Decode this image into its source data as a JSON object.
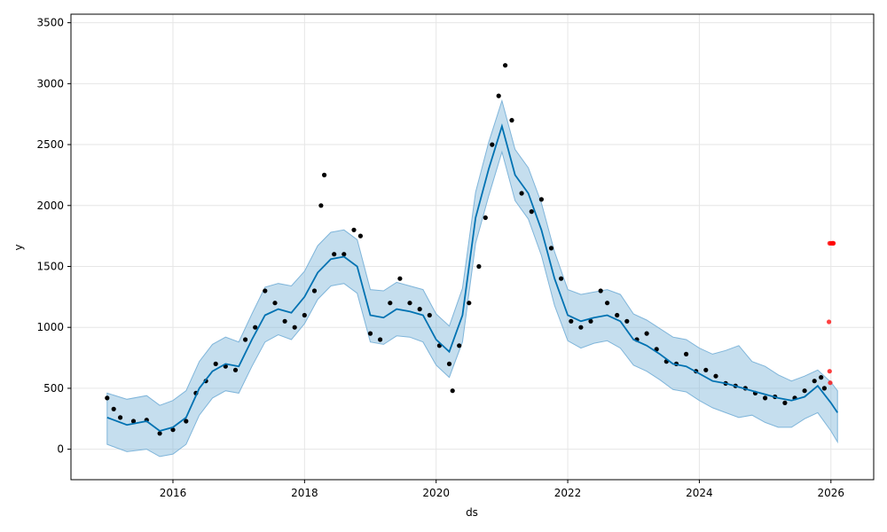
{
  "chart_data": {
    "type": "scatter",
    "xlabel": "ds",
    "ylabel": "y",
    "xlim": [
      2014.45,
      2026.65
    ],
    "ylim": [
      -250,
      3570
    ],
    "grid": true,
    "x_ticks": [
      2016,
      2018,
      2020,
      2022,
      2024,
      2026
    ],
    "x_tick_labels": [
      "2016",
      "2018",
      "2020",
      "2022",
      "2024",
      "2026"
    ],
    "y_ticks": [
      0,
      500,
      1000,
      1500,
      2000,
      2500,
      3000,
      3500
    ],
    "y_tick_labels": [
      "0",
      "500",
      "1000",
      "1500",
      "2000",
      "2500",
      "3000",
      "3500"
    ],
    "colors": {
      "actual": "#000000",
      "forecast": "#0072B2",
      "interval": "#7fb5da",
      "anomaly": "#ff0000",
      "grid": "#e6e6e6"
    },
    "series": [
      {
        "role": "forecast",
        "x": [
          2015.0,
          2015.3,
          2015.6,
          2015.8,
          2016.0,
          2016.2,
          2016.4,
          2016.6,
          2016.8,
          2017.0,
          2017.2,
          2017.4,
          2017.6,
          2017.8,
          2018.0,
          2018.2,
          2018.4,
          2018.6,
          2018.8,
          2019.0,
          2019.2,
          2019.4,
          2019.6,
          2019.8,
          2020.0,
          2020.2,
          2020.4,
          2020.6,
          2020.8,
          2021.0,
          2021.2,
          2021.4,
          2021.6,
          2021.8,
          2022.0,
          2022.2,
          2022.4,
          2022.6,
          2022.8,
          2023.0,
          2023.2,
          2023.4,
          2023.6,
          2023.8,
          2024.0,
          2024.2,
          2024.4,
          2024.6,
          2024.8,
          2025.0,
          2025.2,
          2025.4,
          2025.6,
          2025.8,
          2026.0,
          2026.1
        ],
        "y": [
          260,
          200,
          230,
          150,
          180,
          260,
          500,
          640,
          700,
          680,
          900,
          1100,
          1150,
          1120,
          1250,
          1450,
          1560,
          1580,
          1500,
          1100,
          1080,
          1150,
          1130,
          1100,
          900,
          800,
          1100,
          1900,
          2300,
          2650,
          2250,
          2100,
          1800,
          1400,
          1100,
          1050,
          1080,
          1100,
          1050,
          900,
          850,
          780,
          700,
          680,
          620,
          560,
          540,
          510,
          480,
          450,
          420,
          400,
          430,
          520,
          380,
          300
        ]
      },
      {
        "role": "interval",
        "x": [
          2015.0,
          2015.3,
          2015.6,
          2015.8,
          2016.0,
          2016.2,
          2016.4,
          2016.6,
          2016.8,
          2017.0,
          2017.2,
          2017.4,
          2017.6,
          2017.8,
          2018.0,
          2018.2,
          2018.4,
          2018.6,
          2018.8,
          2019.0,
          2019.2,
          2019.4,
          2019.6,
          2019.8,
          2020.0,
          2020.2,
          2020.4,
          2020.6,
          2020.8,
          2021.0,
          2021.2,
          2021.4,
          2021.6,
          2021.8,
          2022.0,
          2022.2,
          2022.4,
          2022.6,
          2022.8,
          2023.0,
          2023.2,
          2023.4,
          2023.6,
          2023.8,
          2024.0,
          2024.2,
          2024.4,
          2024.6,
          2024.8,
          2025.0,
          2025.2,
          2025.4,
          2025.6,
          2025.8,
          2026.0,
          2026.1
        ],
        "upper": [
          460,
          410,
          440,
          360,
          400,
          480,
          720,
          860,
          920,
          880,
          1110,
          1330,
          1360,
          1340,
          1460,
          1670,
          1780,
          1800,
          1720,
          1310,
          1300,
          1370,
          1340,
          1310,
          1110,
          1010,
          1320,
          2110,
          2520,
          2860,
          2460,
          2310,
          2020,
          1620,
          1310,
          1270,
          1290,
          1310,
          1270,
          1110,
          1060,
          990,
          920,
          900,
          830,
          780,
          810,
          850,
          720,
          680,
          610,
          560,
          600,
          650,
          550,
          480
        ],
        "lower": [
          40,
          -20,
          0,
          -60,
          -40,
          40,
          280,
          420,
          480,
          460,
          680,
          880,
          940,
          900,
          1030,
          1230,
          1340,
          1360,
          1280,
          880,
          860,
          930,
          920,
          880,
          690,
          590,
          880,
          1690,
          2080,
          2440,
          2040,
          1890,
          1590,
          1180,
          890,
          830,
          870,
          890,
          830,
          690,
          640,
          570,
          490,
          470,
          400,
          340,
          300,
          260,
          280,
          220,
          180,
          180,
          250,
          300,
          150,
          60
        ]
      },
      {
        "role": "actual",
        "x": [
          2015.0,
          2015.1,
          2015.2,
          2015.4,
          2015.6,
          2015.8,
          2016.0,
          2016.2,
          2016.35,
          2016.5,
          2016.65,
          2016.8,
          2016.95,
          2017.1,
          2017.25,
          2017.4,
          2017.55,
          2017.7,
          2017.85,
          2018.0,
          2018.15,
          2018.25,
          2018.3,
          2018.45,
          2018.6,
          2018.75,
          2018.85,
          2019.0,
          2019.15,
          2019.3,
          2019.45,
          2019.6,
          2019.75,
          2019.9,
          2020.05,
          2020.2,
          2020.25,
          2020.35,
          2020.5,
          2020.65,
          2020.75,
          2020.85,
          2020.95,
          2021.05,
          2021.15,
          2021.3,
          2021.45,
          2021.6,
          2021.75,
          2021.9,
          2022.05,
          2022.2,
          2022.35,
          2022.5,
          2022.6,
          2022.75,
          2022.9,
          2023.05,
          2023.2,
          2023.35,
          2023.5,
          2023.65,
          2023.8,
          2023.95,
          2024.1,
          2024.25,
          2024.4,
          2024.55,
          2024.7,
          2024.85,
          2025.0,
          2025.15,
          2025.3,
          2025.45,
          2025.6,
          2025.75,
          2025.85,
          2025.9
        ],
        "y": [
          420,
          330,
          260,
          230,
          240,
          130,
          160,
          230,
          460,
          560,
          700,
          680,
          650,
          900,
          1000,
          1300,
          1200,
          1050,
          1000,
          1100,
          1300,
          2000,
          2250,
          1600,
          1600,
          1800,
          1750,
          950,
          900,
          1200,
          1400,
          1200,
          1150,
          1100,
          850,
          700,
          480,
          850,
          1200,
          1500,
          1900,
          2500,
          2900,
          3150,
          2700,
          2100,
          1950,
          2050,
          1650,
          1400,
          1050,
          1000,
          1050,
          1300,
          1200,
          1100,
          1050,
          900,
          950,
          820,
          720,
          700,
          780,
          640,
          650,
          600,
          540,
          520,
          500,
          460,
          420,
          430,
          380,
          420,
          480,
          560,
          590,
          500
        ]
      },
      {
        "role": "anomaly",
        "x": [
          2025.98,
          2026.0,
          2026.02,
          2026.03,
          2026.04,
          2025.97,
          2025.98,
          2025.99
        ],
        "y": [
          1690,
          1690,
          1690,
          1690,
          1690,
          1045,
          640,
          545
        ]
      }
    ]
  }
}
